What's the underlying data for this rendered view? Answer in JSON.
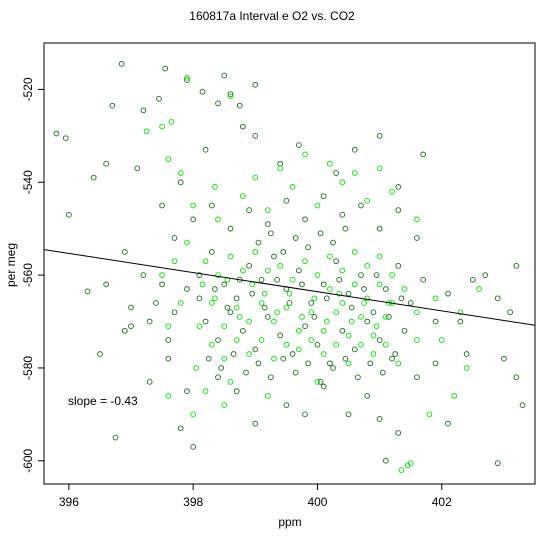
{
  "chart_data": {
    "type": "scatter",
    "title": "160817a   Interval e O2 vs. CO2",
    "xlabel": "ppm",
    "ylabel": "per meg",
    "xlim": [
      395.6,
      403.5
    ],
    "ylim": [
      -605,
      -510
    ],
    "x_ticks": [
      396,
      398,
      400,
      402
    ],
    "y_ticks": [
      -520,
      -540,
      -560,
      -580,
      -600
    ],
    "grid": false,
    "annotation": "slope =  -0.43",
    "series": [
      {
        "marker": "open-circle",
        "color": "#1a6b1a",
        "points": [
          [
            395.8,
            -529.5
          ],
          [
            395.95,
            -530.5
          ],
          [
            396.0,
            -547
          ],
          [
            396.6,
            -536
          ],
          [
            396.7,
            -523.5
          ],
          [
            396.85,
            -514.5
          ],
          [
            397.2,
            -524.5
          ],
          [
            397.45,
            -522
          ],
          [
            396.3,
            -563.5
          ],
          [
            396.5,
            -577
          ],
          [
            396.75,
            -595
          ],
          [
            397.0,
            -571
          ],
          [
            396.4,
            -539
          ],
          [
            397.1,
            -537
          ],
          [
            396.9,
            -555
          ],
          [
            396.6,
            -562
          ],
          [
            398.5,
            -517
          ],
          [
            398.6,
            -521
          ],
          [
            399.0,
            -519
          ],
          [
            398.4,
            -523
          ],
          [
            398.75,
            -523.5
          ],
          [
            397.55,
            -515.5
          ],
          [
            397.9,
            -518
          ],
          [
            398.15,
            -520.5
          ],
          [
            397.3,
            -583
          ],
          [
            397.6,
            -578
          ],
          [
            397.8,
            -593
          ],
          [
            397.9,
            -585
          ],
          [
            398.0,
            -597
          ],
          [
            398.4,
            -582
          ],
          [
            398.7,
            -585
          ],
          [
            399.0,
            -592
          ],
          [
            399.5,
            -588
          ],
          [
            399.8,
            -590
          ],
          [
            400.1,
            -584
          ],
          [
            400.5,
            -590
          ],
          [
            400.8,
            -586
          ],
          [
            401.0,
            -591
          ],
          [
            401.3,
            -594
          ],
          [
            401.1,
            -600
          ],
          [
            401.6,
            -582
          ],
          [
            401.9,
            -579
          ],
          [
            402.1,
            -592
          ],
          [
            402.4,
            -577
          ],
          [
            402.9,
            -600.5
          ],
          [
            403.0,
            -578
          ],
          [
            403.2,
            -582
          ],
          [
            403.3,
            -588
          ],
          [
            402.5,
            -561
          ],
          [
            402.9,
            -565
          ],
          [
            403.1,
            -568
          ],
          [
            402.3,
            -570
          ],
          [
            402.7,
            -560
          ],
          [
            403.2,
            -558
          ],
          [
            401.7,
            -534
          ],
          [
            401.3,
            -541
          ],
          [
            401.0,
            -530
          ],
          [
            400.6,
            -533
          ],
          [
            400.3,
            -538
          ],
          [
            399.7,
            -532
          ],
          [
            399.4,
            -536
          ],
          [
            399.0,
            -530
          ],
          [
            398.8,
            -528
          ],
          [
            398.2,
            -533
          ],
          [
            397.8,
            -540
          ],
          [
            397.5,
            -545
          ],
          [
            397.7,
            -552
          ],
          [
            397.2,
            -560
          ],
          [
            397.4,
            -566
          ],
          [
            397.0,
            -567
          ],
          [
            396.9,
            -572
          ],
          [
            397.6,
            -574
          ],
          [
            398.1,
            -560
          ],
          [
            398.3,
            -555
          ],
          [
            398.5,
            -562
          ],
          [
            398.7,
            -565
          ],
          [
            398.9,
            -558
          ],
          [
            399.1,
            -561
          ],
          [
            399.3,
            -556
          ],
          [
            399.5,
            -563
          ],
          [
            399.7,
            -559
          ],
          [
            399.9,
            -566
          ],
          [
            400.1,
            -562
          ],
          [
            400.3,
            -557
          ],
          [
            400.5,
            -564
          ],
          [
            400.7,
            -560
          ],
          [
            400.9,
            -568
          ],
          [
            401.1,
            -563
          ],
          [
            401.3,
            -558
          ],
          [
            401.5,
            -566
          ],
          [
            401.7,
            -561
          ],
          [
            401.9,
            -570
          ],
          [
            402.1,
            -564
          ],
          [
            398.2,
            -570
          ],
          [
            398.4,
            -574
          ],
          [
            398.6,
            -568
          ],
          [
            398.8,
            -572
          ],
          [
            399.0,
            -576
          ],
          [
            399.2,
            -569
          ],
          [
            399.4,
            -573
          ],
          [
            399.6,
            -577
          ],
          [
            399.8,
            -571
          ],
          [
            400.0,
            -575
          ],
          [
            400.2,
            -579
          ],
          [
            400.4,
            -572
          ],
          [
            400.6,
            -576
          ],
          [
            400.8,
            -570
          ],
          [
            401.0,
            -574
          ],
          [
            401.2,
            -578
          ],
          [
            401.4,
            -572
          ],
          [
            398.0,
            -548
          ],
          [
            398.3,
            -545
          ],
          [
            398.6,
            -550
          ],
          [
            398.9,
            -546
          ],
          [
            399.2,
            -549
          ],
          [
            399.5,
            -544
          ],
          [
            399.8,
            -548
          ],
          [
            400.1,
            -543
          ],
          [
            400.4,
            -547
          ],
          [
            400.7,
            -545
          ],
          [
            401.0,
            -550
          ],
          [
            401.3,
            -546
          ],
          [
            401.6,
            -552
          ],
          [
            398.1,
            -565
          ],
          [
            398.35,
            -563
          ],
          [
            398.55,
            -567
          ],
          [
            398.75,
            -561
          ],
          [
            398.95,
            -564
          ],
          [
            399.15,
            -567
          ],
          [
            399.35,
            -561
          ],
          [
            399.55,
            -566
          ],
          [
            399.75,
            -562
          ],
          [
            399.95,
            -569
          ],
          [
            400.15,
            -565
          ],
          [
            400.35,
            -561
          ],
          [
            400.55,
            -567
          ],
          [
            400.75,
            -563
          ],
          [
            400.95,
            -560
          ],
          [
            401.15,
            -569
          ],
          [
            401.35,
            -565
          ],
          [
            397.9,
            -563
          ],
          [
            397.7,
            -568
          ],
          [
            397.5,
            -562
          ],
          [
            397.3,
            -570
          ],
          [
            399.05,
            -553
          ],
          [
            399.25,
            -551
          ],
          [
            399.45,
            -555
          ],
          [
            399.65,
            -552
          ],
          [
            399.85,
            -554
          ],
          [
            400.05,
            -551
          ],
          [
            400.25,
            -553
          ],
          [
            400.45,
            -550
          ],
          [
            398.25,
            -578
          ],
          [
            398.45,
            -580
          ],
          [
            398.65,
            -577
          ],
          [
            398.85,
            -581
          ],
          [
            399.05,
            -579
          ],
          [
            399.25,
            -582
          ],
          [
            399.45,
            -578
          ],
          [
            399.65,
            -581
          ],
          [
            399.85,
            -579
          ],
          [
            400.05,
            -583
          ],
          [
            400.25,
            -580
          ],
          [
            400.45,
            -578
          ],
          [
            400.65,
            -582
          ],
          [
            400.85,
            -579
          ],
          [
            401.05,
            -581
          ],
          [
            401.25,
            -577
          ]
        ]
      },
      {
        "marker": "open-circle",
        "color": "#00e000",
        "points": [
          [
            397.25,
            -529
          ],
          [
            397.5,
            -528
          ],
          [
            397.6,
            -535
          ],
          [
            397.65,
            -527
          ],
          [
            397.8,
            -538
          ],
          [
            398.35,
            -541
          ],
          [
            397.9,
            -517.5
          ],
          [
            398.6,
            -521.5
          ],
          [
            398.0,
            -590
          ],
          [
            397.6,
            -586
          ],
          [
            398.5,
            -588
          ],
          [
            399.2,
            -586
          ],
          [
            400.0,
            -583
          ],
          [
            401.45,
            -601
          ],
          [
            401.35,
            -602
          ],
          [
            401.5,
            -600.5
          ],
          [
            401.8,
            -590
          ],
          [
            402.2,
            -586
          ],
          [
            402.4,
            -580
          ],
          [
            402.0,
            -574
          ],
          [
            401.6,
            -574
          ],
          [
            402.3,
            -568
          ],
          [
            401.9,
            -565
          ],
          [
            402.6,
            -563
          ],
          [
            398.1,
            -571
          ],
          [
            398.3,
            -566
          ],
          [
            398.5,
            -571
          ],
          [
            398.7,
            -567
          ],
          [
            398.9,
            -570
          ],
          [
            399.1,
            -566
          ],
          [
            399.3,
            -570
          ],
          [
            399.5,
            -567
          ],
          [
            399.7,
            -572
          ],
          [
            399.9,
            -568
          ],
          [
            400.1,
            -572
          ],
          [
            400.3,
            -568
          ],
          [
            400.5,
            -573
          ],
          [
            400.7,
            -569
          ],
          [
            400.9,
            -573
          ],
          [
            401.1,
            -569
          ],
          [
            398.2,
            -557
          ],
          [
            398.4,
            -560
          ],
          [
            398.6,
            -556
          ],
          [
            398.8,
            -559
          ],
          [
            399.0,
            -555
          ],
          [
            399.2,
            -559
          ],
          [
            399.4,
            -558
          ],
          [
            399.6,
            -561
          ],
          [
            399.8,
            -557
          ],
          [
            400.0,
            -560
          ],
          [
            400.2,
            -556
          ],
          [
            400.4,
            -559
          ],
          [
            400.6,
            -555
          ],
          [
            400.8,
            -558
          ],
          [
            401.0,
            -556
          ],
          [
            401.2,
            -560
          ],
          [
            398.3,
            -575
          ],
          [
            398.5,
            -578
          ],
          [
            398.7,
            -574
          ],
          [
            398.9,
            -577
          ],
          [
            399.1,
            -574
          ],
          [
            399.3,
            -578
          ],
          [
            399.5,
            -575
          ],
          [
            399.7,
            -576
          ],
          [
            399.9,
            -574
          ],
          [
            400.1,
            -577
          ],
          [
            400.3,
            -575
          ],
          [
            400.5,
            -579
          ],
          [
            400.7,
            -575
          ],
          [
            400.9,
            -577
          ],
          [
            401.1,
            -575
          ],
          [
            401.3,
            -579
          ],
          [
            398.0,
            -545
          ],
          [
            398.4,
            -548
          ],
          [
            398.8,
            -543
          ],
          [
            399.2,
            -546
          ],
          [
            399.6,
            -541
          ],
          [
            400.0,
            -545
          ],
          [
            400.4,
            -540
          ],
          [
            400.8,
            -544
          ],
          [
            401.2,
            -542
          ],
          [
            401.6,
            -548
          ],
          [
            399.4,
            -537
          ],
          [
            399.8,
            -534
          ],
          [
            400.2,
            -536
          ],
          [
            400.6,
            -538
          ],
          [
            399.0,
            -539
          ],
          [
            401.0,
            -537
          ],
          [
            397.7,
            -557
          ],
          [
            397.5,
            -560
          ],
          [
            397.9,
            -553
          ],
          [
            397.8,
            -566
          ],
          [
            397.6,
            -571
          ],
          [
            398.05,
            -580
          ],
          [
            398.2,
            -585
          ],
          [
            398.6,
            -583
          ],
          [
            400.2,
            -563
          ],
          [
            400.4,
            -566
          ],
          [
            400.6,
            -562
          ],
          [
            400.8,
            -565
          ],
          [
            401.0,
            -562
          ],
          [
            401.2,
            -566
          ],
          [
            401.4,
            -563
          ],
          [
            401.6,
            -568
          ],
          [
            398.15,
            -562
          ],
          [
            398.35,
            -565
          ],
          [
            398.55,
            -561
          ],
          [
            398.75,
            -569
          ],
          [
            398.95,
            -562
          ],
          [
            399.15,
            -564
          ],
          [
            399.35,
            -568
          ],
          [
            399.55,
            -564
          ],
          [
            399.75,
            -569
          ],
          [
            399.95,
            -565
          ],
          [
            400.15,
            -570
          ],
          [
            400.35,
            -564
          ],
          [
            400.55,
            -570
          ],
          [
            400.75,
            -566
          ],
          [
            400.95,
            -571
          ],
          [
            401.15,
            -566
          ]
        ]
      }
    ],
    "regression": {
      "slope": -0.43,
      "x": [
        395.6,
        403.5
      ],
      "y": [
        -554.5,
        -570.8
      ]
    }
  }
}
